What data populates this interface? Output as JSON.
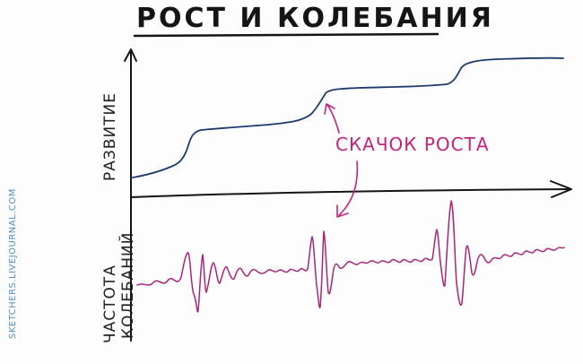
{
  "title": "РОСТ И КОЛЕБАНИЯ",
  "y_label_top": "РАЗВИТИЕ",
  "y_label_bottom_line1": "ЧАСТОТА",
  "y_label_bottom_line2": "КОЛЕБАНИЙ",
  "annotation": "СКАЧОК РОСТА",
  "credit": "SKETCHERS.LIVEJOURNAL.COM",
  "colors": {
    "ink": "#151515",
    "growth": "#1f3a6e",
    "oscillation": "#a8267a",
    "annotation": "#c1247d",
    "credit": "#4f8fc6"
  }
}
